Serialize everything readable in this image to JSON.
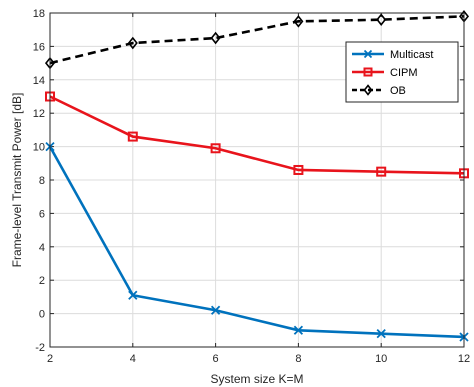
{
  "chart_data": {
    "type": "line",
    "title": "",
    "xlabel": "System size K=M",
    "ylabel": "Frame-level Transmit Power [dB]",
    "xlim": [
      2,
      12
    ],
    "ylim": [
      -2,
      18
    ],
    "xticks": [
      2,
      4,
      6,
      8,
      10,
      12
    ],
    "yticks": [
      -2,
      0,
      2,
      4,
      6,
      8,
      10,
      12,
      14,
      16,
      18
    ],
    "grid": true,
    "legend_position": "top-right",
    "x": [
      2,
      4,
      6,
      8,
      10,
      12
    ],
    "series": [
      {
        "name": "Multicast",
        "values": [
          10.0,
          1.1,
          0.2,
          -1.0,
          -1.2,
          -1.4
        ],
        "color": "#0072BD",
        "marker": "x",
        "line": "solid"
      },
      {
        "name": "CIPM",
        "values": [
          13.0,
          10.6,
          9.9,
          8.6,
          8.5,
          8.4
        ],
        "color": "#E8141C",
        "marker": "square",
        "line": "solid"
      },
      {
        "name": "OB",
        "values": [
          15.0,
          16.2,
          16.5,
          17.5,
          17.6,
          17.8
        ],
        "color": "#000000",
        "marker": "diamond",
        "line": "dashed"
      }
    ]
  }
}
